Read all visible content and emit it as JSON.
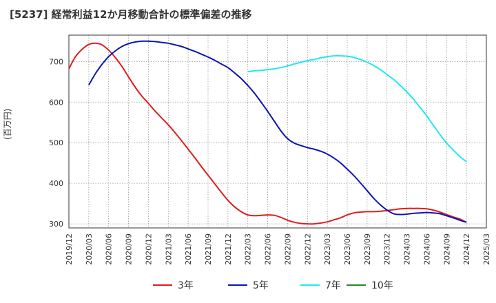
{
  "chart_data": {
    "type": "line",
    "title": "[5237]  経常利益12か月移動合計の標準偏差の推移",
    "ylabel": "(百万円)",
    "xlabel": "",
    "ylim": [
      290,
      765
    ],
    "yticks": [
      300,
      400,
      500,
      600,
      700
    ],
    "xticks": [
      "2019/12",
      "2020/03",
      "2020/06",
      "2020/09",
      "2020/12",
      "2021/03",
      "2021/06",
      "2021/09",
      "2021/12",
      "2022/03",
      "2022/06",
      "2022/09",
      "2022/12",
      "2023/03",
      "2023/06",
      "2023/09",
      "2023/12",
      "2024/03",
      "2024/06",
      "2024/09",
      "2024/12",
      "2025/03"
    ],
    "grid": true,
    "legend_position": "bottom",
    "series": [
      {
        "name": "3年",
        "color": "#e31a1c",
        "x": [
          "2019/12",
          "2020/01",
          "2020/02",
          "2020/03",
          "2020/04",
          "2020/05",
          "2020/06",
          "2020/07",
          "2020/08",
          "2020/09",
          "2020/10",
          "2020/11",
          "2020/12",
          "2021/01",
          "2021/02",
          "2021/03",
          "2021/04",
          "2021/05",
          "2021/06",
          "2021/07",
          "2021/08",
          "2021/09",
          "2021/10",
          "2021/11",
          "2021/12",
          "2022/01",
          "2022/02",
          "2022/03",
          "2022/04",
          "2022/05",
          "2022/06",
          "2022/07",
          "2022/08",
          "2022/09",
          "2022/10",
          "2022/11",
          "2022/12",
          "2023/01",
          "2023/02",
          "2023/03",
          "2023/04",
          "2023/05",
          "2023/06",
          "2023/07",
          "2023/08",
          "2023/09",
          "2023/10",
          "2023/11",
          "2023/12",
          "2024/01",
          "2024/02",
          "2024/03",
          "2024/04",
          "2024/05",
          "2024/06",
          "2024/07",
          "2024/08",
          "2024/09",
          "2024/10",
          "2024/11",
          "2024/12"
        ],
        "values": [
          682,
          712,
          730,
          742,
          745,
          741,
          728,
          710,
          688,
          662,
          637,
          615,
          597,
          578,
          561,
          544,
          525,
          505,
          484,
          463,
          441,
          420,
          399,
          378,
          358,
          342,
          330,
          322,
          320,
          321,
          322,
          321,
          316,
          309,
          304,
          301,
          300,
          300,
          302,
          305,
          310,
          315,
          322,
          327,
          329,
          330,
          330,
          331,
          333,
          335,
          337,
          338,
          338,
          338,
          337,
          334,
          329,
          323,
          317,
          312,
          304
        ],
        "label_pos": 0
      },
      {
        "name": "5年",
        "color": "#0a14b4",
        "x": [
          "2020/03",
          "2020/04",
          "2020/05",
          "2020/06",
          "2020/07",
          "2020/08",
          "2020/09",
          "2020/10",
          "2020/11",
          "2020/12",
          "2021/01",
          "2021/02",
          "2021/03",
          "2021/04",
          "2021/05",
          "2021/06",
          "2021/07",
          "2021/08",
          "2021/09",
          "2021/10",
          "2021/11",
          "2021/12",
          "2022/01",
          "2022/02",
          "2022/03",
          "2022/04",
          "2022/05",
          "2022/06",
          "2022/07",
          "2022/08",
          "2022/09",
          "2022/10",
          "2022/11",
          "2022/12",
          "2023/01",
          "2023/02",
          "2023/03",
          "2023/04",
          "2023/05",
          "2023/06",
          "2023/07",
          "2023/08",
          "2023/09",
          "2023/10",
          "2023/11",
          "2023/12",
          "2024/01",
          "2024/02",
          "2024/03",
          "2024/04",
          "2024/05",
          "2024/06",
          "2024/07",
          "2024/08",
          "2024/09",
          "2024/10",
          "2024/11",
          "2024/12"
        ],
        "values": [
          642,
          670,
          693,
          712,
          726,
          737,
          744,
          748,
          750,
          750,
          749,
          747,
          745,
          741,
          737,
          731,
          725,
          718,
          711,
          703,
          694,
          685,
          672,
          658,
          641,
          622,
          600,
          577,
          553,
          529,
          510,
          499,
          493,
          488,
          484,
          479,
          472,
          462,
          450,
          435,
          419,
          401,
          382,
          363,
          347,
          334,
          325,
          323,
          324,
          326,
          327,
          328,
          327,
          325,
          320,
          315,
          309,
          304
        ],
        "label_pos": 1
      },
      {
        "name": "7年",
        "color": "#1de9f0",
        "x": [
          "2022/03",
          "2022/04",
          "2022/05",
          "2022/06",
          "2022/07",
          "2022/08",
          "2022/09",
          "2022/10",
          "2022/11",
          "2022/12",
          "2023/01",
          "2023/02",
          "2023/03",
          "2023/04",
          "2023/05",
          "2023/06",
          "2023/07",
          "2023/08",
          "2023/09",
          "2023/10",
          "2023/11",
          "2023/12",
          "2024/01",
          "2024/02",
          "2024/03",
          "2024/04",
          "2024/05",
          "2024/06",
          "2024/07",
          "2024/08",
          "2024/09",
          "2024/10",
          "2024/11",
          "2024/12"
        ],
        "values": [
          675,
          677,
          678,
          680,
          682,
          685,
          689,
          694,
          698,
          702,
          705,
          709,
          712,
          714,
          714,
          713,
          710,
          705,
          698,
          690,
          680,
          668,
          656,
          641,
          625,
          607,
          587,
          566,
          543,
          520,
          499,
          482,
          466,
          453
        ],
        "label_pos": 2
      },
      {
        "name": "10年",
        "color": "#228b22",
        "x": [],
        "values": [],
        "label_pos": 3
      }
    ]
  }
}
